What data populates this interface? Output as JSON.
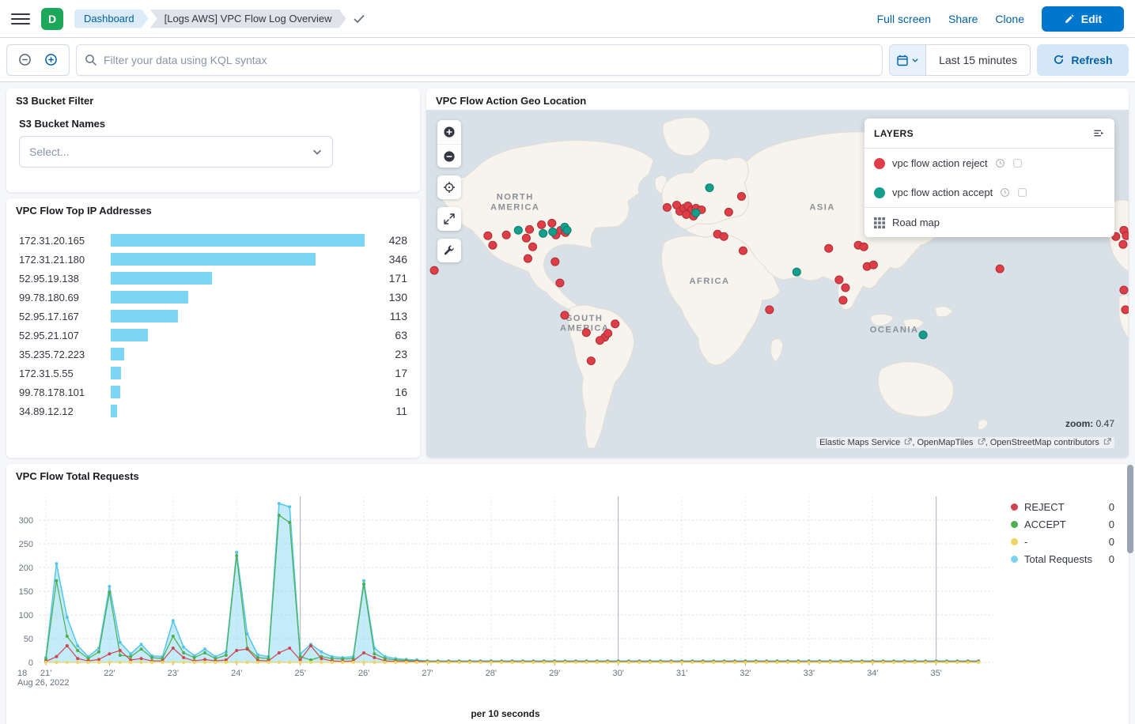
{
  "header": {
    "space_initial": "D",
    "breadcrumbs": [
      "Dashboard",
      "[Logs AWS] VPC Flow Log Overview"
    ],
    "actions": [
      "Full screen",
      "Share",
      "Clone"
    ],
    "edit_label": "Edit"
  },
  "query_bar": {
    "placeholder": "Filter your data using KQL syntax",
    "time_range": "Last 15 minutes",
    "refresh_label": "Refresh"
  },
  "panels": {
    "s3_filter": {
      "title": "S3 Bucket Filter",
      "field_label": "S3 Bucket Names",
      "select_placeholder": "Select..."
    },
    "top_ips": {
      "title": "VPC Flow Top IP Addresses",
      "max": 428,
      "bar_color": "#7bd6f3",
      "rows": [
        {
          "ip": "172.31.20.165",
          "value": 428
        },
        {
          "ip": "172.31.21.180",
          "value": 346
        },
        {
          "ip": "52.95.19.138",
          "value": 171
        },
        {
          "ip": "99.78.180.69",
          "value": 130
        },
        {
          "ip": "52.95.17.167",
          "value": 113
        },
        {
          "ip": "52.95.21.107",
          "value": 63
        },
        {
          "ip": "35.235.72.223",
          "value": 23
        },
        {
          "ip": "172.31.5.55",
          "value": 17
        },
        {
          "ip": "99.78.178.101",
          "value": 16
        },
        {
          "ip": "34.89.12.12",
          "value": 11
        }
      ]
    },
    "map": {
      "title": "VPC Flow Action Geo Location",
      "layers_title": "LAYERS",
      "layers": [
        {
          "name": "vpc flow action reject",
          "kind": "reject",
          "color": "#df3e46"
        },
        {
          "name": "vpc flow action accept",
          "kind": "accept",
          "color": "#139e8d"
        },
        {
          "name": "Road map",
          "kind": "roadmap"
        }
      ],
      "zoom_label": "zoom:",
      "zoom_value": "0.47",
      "attribution_links": [
        "Elastic Maps Service",
        "OpenMapTiles",
        "OpenStreetMap contributors"
      ],
      "geo_labels": [
        {
          "lines": [
            "NORTH",
            "AMERICA"
          ]
        },
        {
          "lines": [
            "SOUTH",
            "AMERICA"
          ]
        },
        {
          "lines": [
            "AFRICA"
          ]
        },
        {
          "lines": [
            "ASIA"
          ]
        },
        {
          "lines": [
            "OCEANIA"
          ]
        }
      ],
      "points": [
        [
          10,
          204,
          "r"
        ],
        [
          77,
          160,
          "r"
        ],
        [
          83,
          172,
          "r"
        ],
        [
          100,
          159,
          "r"
        ],
        [
          125,
          163,
          "r"
        ],
        [
          129,
          152,
          "r"
        ],
        [
          133,
          174,
          "r"
        ],
        [
          144,
          146,
          "r"
        ],
        [
          157,
          144,
          "r"
        ],
        [
          162,
          159,
          "r"
        ],
        [
          168,
          153,
          "r"
        ],
        [
          174,
          156,
          "r"
        ],
        [
          161,
          193,
          "r"
        ],
        [
          127,
          189,
          "r"
        ],
        [
          167,
          220,
          "r"
        ],
        [
          173,
          261,
          "r"
        ],
        [
          200,
          283,
          "r"
        ],
        [
          223,
          289,
          "r"
        ],
        [
          227,
          284,
          "r"
        ],
        [
          217,
          293,
          "r"
        ],
        [
          236,
          272,
          "r"
        ],
        [
          206,
          319,
          "r"
        ],
        [
          301,
          124,
          "r"
        ],
        [
          313,
          121,
          "r"
        ],
        [
          317,
          129,
          "r"
        ],
        [
          322,
          125,
          "r"
        ],
        [
          327,
          122,
          "r"
        ],
        [
          332,
          127,
          "r"
        ],
        [
          337,
          125,
          "r"
        ],
        [
          325,
          133,
          "r"
        ],
        [
          334,
          135,
          "r"
        ],
        [
          344,
          127,
          "r"
        ],
        [
          378,
          130,
          "r"
        ],
        [
          394,
          110,
          "r"
        ],
        [
          364,
          158,
          "r"
        ],
        [
          372,
          161,
          "r"
        ],
        [
          396,
          179,
          "r"
        ],
        [
          429,
          254,
          "r"
        ],
        [
          503,
          176,
          "r"
        ],
        [
          516,
          216,
          "r"
        ],
        [
          524,
          226,
          "r"
        ],
        [
          521,
          242,
          "r"
        ],
        [
          540,
          172,
          "r"
        ],
        [
          547,
          174,
          "r"
        ],
        [
          551,
          199,
          "r"
        ],
        [
          559,
          197,
          "r"
        ],
        [
          717,
          202,
          "r"
        ],
        [
          862,
          161,
          "r"
        ],
        [
          872,
          153,
          "r"
        ],
        [
          875,
          160,
          "r"
        ],
        [
          871,
          171,
          "r"
        ],
        [
          872,
          229,
          "r"
        ],
        [
          874,
          254,
          "r"
        ],
        [
          115,
          153,
          "g"
        ],
        [
          146,
          157,
          "g"
        ],
        [
          158,
          155,
          "g"
        ],
        [
          173,
          149,
          "g"
        ],
        [
          176,
          153,
          "g"
        ],
        [
          337,
          131,
          "g"
        ],
        [
          354,
          99,
          "g"
        ],
        [
          463,
          206,
          "g"
        ],
        [
          621,
          286,
          "g"
        ]
      ]
    }
  },
  "chart_data": {
    "type": "area",
    "title": "VPC Flow Total Requests",
    "xlabel": "per 10 seconds",
    "x_date_label": [
      "18",
      "Aug 26, 2022"
    ],
    "x_tick_labels": [
      "21'",
      "22'",
      "23'",
      "24'",
      "25'",
      "26'",
      "27'",
      "28'",
      "29'",
      "30'",
      "31'",
      "32'",
      "33'",
      "34'",
      "35'"
    ],
    "y_ticks": [
      0,
      50,
      100,
      150,
      200,
      250,
      300
    ],
    "ylim": [
      0,
      350
    ],
    "x_minutes_start": 21,
    "step_seconds": 10,
    "grid": true,
    "legend_position": "right",
    "series": [
      {
        "name": "REJECT",
        "color": "#ce4550",
        "values": [
          2,
          12,
          35,
          8,
          3,
          6,
          18,
          25,
          5,
          8,
          3,
          3,
          30,
          10,
          3,
          6,
          3,
          5,
          25,
          28,
          4,
          3,
          20,
          30,
          5,
          35,
          8,
          3,
          2,
          3,
          20,
          10,
          3,
          2,
          2,
          2,
          1,
          1,
          1,
          1,
          1,
          1,
          1,
          1,
          1,
          1,
          1,
          1,
          1,
          1,
          1,
          1,
          1,
          1,
          1,
          1,
          1,
          1,
          1,
          1,
          1,
          1,
          1,
          1,
          1,
          1,
          1,
          1,
          1,
          1,
          1,
          1,
          1,
          1,
          1,
          1,
          1,
          1,
          1,
          1,
          1,
          1,
          1,
          1,
          1,
          1,
          1,
          1,
          1
        ]
      },
      {
        "name": "ACCEPT",
        "color": "#4dae50",
        "values": [
          6,
          172,
          55,
          25,
          8,
          22,
          148,
          15,
          12,
          28,
          10,
          8,
          55,
          20,
          10,
          20,
          8,
          15,
          225,
          30,
          10,
          8,
          310,
          295,
          12,
          5,
          12,
          8,
          7,
          8,
          165,
          18,
          8,
          5,
          4,
          3,
          2,
          2,
          2,
          2,
          2,
          2,
          2,
          2,
          2,
          2,
          2,
          2,
          2,
          2,
          2,
          2,
          2,
          2,
          2,
          2,
          2,
          2,
          2,
          2,
          2,
          2,
          2,
          2,
          2,
          2,
          2,
          2,
          2,
          2,
          2,
          2,
          2,
          2,
          2,
          2,
          2,
          2,
          2,
          2,
          2,
          2,
          2,
          2,
          2,
          2,
          2,
          2,
          2
        ]
      },
      {
        "name": "-",
        "color": "#efd75d",
        "values": [
          0,
          0,
          0,
          0,
          0,
          0,
          0,
          0,
          0,
          0,
          0,
          0,
          0,
          0,
          0,
          0,
          0,
          0,
          0,
          0,
          0,
          0,
          0,
          0,
          0,
          0,
          0,
          0,
          0,
          0,
          0,
          0,
          0,
          0,
          0,
          0,
          0,
          0,
          0,
          0,
          0,
          0,
          0,
          0,
          0,
          0,
          0,
          0,
          0,
          0,
          0,
          0,
          0,
          0,
          0,
          0,
          0,
          0,
          0,
          0,
          0,
          0,
          0,
          0,
          0,
          0,
          0,
          0,
          0,
          0,
          0,
          0,
          0,
          0,
          0,
          0,
          0,
          0,
          0,
          0,
          0,
          0,
          0,
          0,
          0,
          0,
          0,
          0,
          0
        ]
      },
      {
        "name": "Total Requests",
        "color": "#54c6ea",
        "fill": "rgba(121,210,242,0.45)",
        "values": [
          10,
          208,
          95,
          35,
          12,
          30,
          160,
          42,
          18,
          38,
          14,
          12,
          88,
          32,
          14,
          28,
          12,
          22,
          232,
          60,
          16,
          12,
          335,
          328,
          18,
          38,
          22,
          12,
          10,
          12,
          172,
          30,
          12,
          8,
          6,
          5,
          3,
          3,
          3,
          3,
          3,
          3,
          3,
          3,
          3,
          3,
          3,
          3,
          3,
          3,
          3,
          3,
          3,
          3,
          3,
          3,
          3,
          3,
          3,
          3,
          3,
          3,
          3,
          3,
          3,
          3,
          3,
          3,
          3,
          3,
          3,
          3,
          3,
          3,
          3,
          3,
          3,
          3,
          3,
          3,
          3,
          3,
          3,
          3,
          3,
          3,
          3,
          3,
          3
        ]
      }
    ],
    "legend": [
      {
        "label": "REJECT",
        "value": 0,
        "color": "#d0424d"
      },
      {
        "label": "ACCEPT",
        "value": 0,
        "color": "#4dae50"
      },
      {
        "label": "-",
        "value": 0,
        "color": "#f0d45f"
      },
      {
        "label": "Total Requests",
        "value": 0,
        "color": "#79d2f2"
      }
    ]
  }
}
